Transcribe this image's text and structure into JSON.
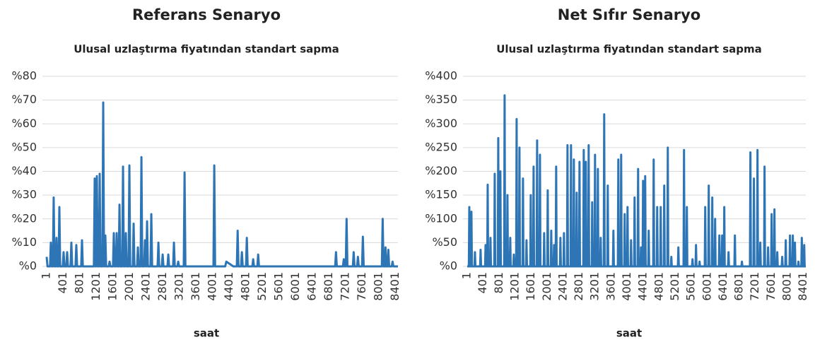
{
  "chart_data": [
    {
      "type": "line",
      "title": "Referans Senaryo",
      "subtitle": "Ulusal uzlaştırma fiyatından standart sapma",
      "x_label": "saat",
      "xlim": [
        1,
        8460
      ],
      "xticks": [
        1,
        401,
        801,
        1201,
        1601,
        2001,
        2401,
        2801,
        3201,
        3601,
        4001,
        4401,
        4801,
        5201,
        5601,
        6001,
        6401,
        6801,
        7201,
        7601,
        8001,
        8401
      ],
      "ylim": [
        0,
        80
      ],
      "yticks": [
        {
          "value": 0,
          "label": "%0"
        },
        {
          "value": 10,
          "label": "%10"
        },
        {
          "value": 20,
          "label": "%20"
        },
        {
          "value": 30,
          "label": "%30"
        },
        {
          "value": 40,
          "label": "%40"
        },
        {
          "value": 50,
          "label": "%50"
        },
        {
          "value": 60,
          "label": "%60"
        },
        {
          "value": 70,
          "label": "%70"
        },
        {
          "value": 80,
          "label": "%80"
        }
      ],
      "grid": true,
      "series": [
        {
          "color": "#2e75b6",
          "x": [
            1,
            21,
            82,
            102,
            122,
            150,
            170,
            190,
            218,
            238,
            258,
            287,
            307,
            327,
            389,
            409,
            429,
            474,
            494,
            514,
            576,
            596,
            616,
            695,
            715,
            735,
            832,
            852,
            872,
            1138,
            1158,
            1178,
            1190,
            1210,
            1230,
            1258,
            1278,
            1298,
            1343,
            1363,
            1383,
            1394,
            1414,
            1434,
            1496,
            1516,
            1536,
            1598,
            1618,
            1638,
            1667,
            1687,
            1707,
            1735,
            1755,
            1775,
            1820,
            1840,
            1860,
            1888,
            1908,
            1928,
            1973,
            1993,
            2013,
            2075,
            2095,
            2115,
            2178,
            2198,
            2218,
            2263,
            2283,
            2303,
            2348,
            2368,
            2388,
            2399,
            2419,
            2439,
            2501,
            2521,
            2541,
            2672,
            2692,
            2712,
            2774,
            2794,
            2814,
            2910,
            2930,
            2950,
            3046,
            3066,
            3086,
            3149,
            3169,
            3189,
            3302,
            3322,
            3342,
            4017,
            4037,
            4057,
            4300,
            4327,
            4497,
            4580,
            4600,
            4620,
            4682,
            4702,
            4722,
            4801,
            4821,
            4841,
            4954,
            4974,
            4994,
            5074,
            5094,
            5114,
            6948,
            6968,
            6988,
            7135,
            7155,
            7175,
            7203,
            7223,
            7243,
            7374,
            7394,
            7414,
            7476,
            7496,
            7516,
            7595,
            7615,
            7635,
            8072,
            8092,
            8112,
            8140,
            8160,
            8180,
            8208,
            8228,
            8248,
            8310,
            8330,
            8350,
            8460
          ],
          "values": [
            4,
            0,
            0,
            10,
            0,
            0,
            29,
            0,
            0,
            12,
            0,
            0,
            25,
            0,
            0,
            6,
            0,
            0,
            6,
            0,
            0,
            10,
            0,
            0,
            9,
            0,
            0,
            11,
            0,
            0,
            37,
            0,
            0,
            38,
            0,
            0,
            39,
            0,
            0,
            69,
            0,
            0,
            13,
            0,
            0,
            2,
            0,
            0,
            14,
            0,
            0,
            14,
            0,
            0,
            26,
            0,
            0,
            42,
            0,
            0,
            14,
            0,
            0,
            42.5,
            0,
            0,
            18,
            0,
            0,
            8,
            0,
            0,
            46,
            0,
            0,
            11,
            0,
            0,
            19,
            0,
            0,
            22,
            0,
            0,
            10,
            0,
            0,
            5,
            0,
            0,
            5,
            0,
            0,
            10,
            0,
            0,
            2,
            0,
            0,
            39.5,
            0,
            0,
            42.5,
            0,
            0,
            2,
            0,
            0,
            15,
            0,
            0,
            6,
            0,
            0,
            12,
            0,
            0,
            3,
            0,
            0,
            5,
            0,
            0,
            6,
            0,
            0,
            3,
            0,
            0,
            20,
            0,
            0,
            6,
            0,
            0,
            4,
            0,
            0,
            12.5,
            0,
            0,
            20,
            0,
            0,
            8,
            0,
            0,
            7,
            0,
            0,
            2,
            0,
            0
          ]
        }
      ]
    },
    {
      "type": "line",
      "title": "Net Sıfır Senaryo",
      "subtitle": "Ulusal uzlaştırma fiyatından standart sapma",
      "x_label": "saat",
      "xlim": [
        1,
        8460
      ],
      "xticks": [
        1,
        401,
        801,
        1201,
        1601,
        2001,
        2401,
        2801,
        3201,
        3601,
        4001,
        4401,
        4801,
        5201,
        5601,
        6001,
        6401,
        6801,
        7201,
        7601,
        8001,
        8401
      ],
      "ylim": [
        0,
        400
      ],
      "yticks": [
        {
          "value": 0,
          "label": "%0"
        },
        {
          "value": 50,
          "label": "%50"
        },
        {
          "value": 100,
          "label": "%100"
        },
        {
          "value": 150,
          "label": "%150"
        },
        {
          "value": 200,
          "label": "%200"
        },
        {
          "value": 250,
          "label": "%250"
        },
        {
          "value": 300,
          "label": "%300"
        },
        {
          "value": 350,
          "label": "%350"
        },
        {
          "value": 400,
          "label": "%400"
        }
      ],
      "grid": true,
      "series": [
        {
          "color": "#2e75b6",
          "x": [
            1,
            41,
            53,
            65,
            94,
            106,
            118,
            182,
            194,
            206,
            323,
            335,
            347,
            447,
            459,
            471,
            500,
            512,
            524,
            570,
            582,
            594,
            676,
            688,
            700,
            764,
            776,
            788,
            817,
            829,
            841,
            923,
            935,
            947,
            994,
            1006,
            1018,
            1064,
            1076,
            1088,
            1153,
            1165,
            1177,
            1223,
            1235,
            1247,
            1294,
            1306,
            1318,
            1382,
            1394,
            1406,
            1470,
            1482,
            1494,
            1576,
            1588,
            1600,
            1647,
            1659,
            1671,
            1735,
            1747,
            1759,
            1806,
            1818,
            1830,
            1911,
            1923,
            1935,
            2000,
            2012,
            2024,
            2088,
            2100,
            2112,
            2158,
            2170,
            2182,
            2211,
            2223,
            2235,
            2317,
            2329,
            2341,
            2406,
            2418,
            2430,
            2494,
            2506,
            2518,
            2582,
            2594,
            2606,
            2653,
            2665,
            2677,
            2723,
            2735,
            2747,
            2794,
            2806,
            2818,
            2900,
            2912,
            2924,
            2953,
            2965,
            2977,
            3023,
            3035,
            3047,
            3111,
            3123,
            3135,
            3182,
            3194,
            3206,
            3253,
            3265,
            3277,
            3323,
            3335,
            3347,
            3411,
            3423,
            3435,
            3500,
            3512,
            3524,
            3641,
            3653,
            3665,
            3764,
            3776,
            3788,
            3835,
            3847,
            3859,
            3923,
            3935,
            3947,
            3994,
            4006,
            4018,
            4082,
            4094,
            4106,
            4170,
            4182,
            4194,
            4258,
            4270,
            4282,
            4329,
            4341,
            4353,
            4382,
            4394,
            4406,
            4435,
            4447,
            4459,
            4523,
            4535,
            4547,
            4647,
            4659,
            4671,
            4735,
            4747,
            4759,
            4823,
            4835,
            4847,
            4911,
            4923,
            4935,
            5000,
            5012,
            5024,
            5088,
            5100,
            5112,
            5264,
            5276,
            5288,
            5405,
            5417,
            5429,
            5476,
            5488,
            5500,
            5617,
            5629,
            5641,
            5705,
            5717,
            5729,
            5794,
            5806,
            5818,
            5935,
            5947,
            5959,
            6023,
            6035,
            6047,
            6111,
            6123,
            6135,
            6182,
            6194,
            6206,
            6288,
            6300,
            6312,
            6358,
            6370,
            6382,
            6411,
            6423,
            6435,
            6517,
            6529,
            6541,
            6676,
            6688,
            6700,
            6852,
            6864,
            6876,
            7064,
            7076,
            7088,
            7152,
            7164,
            7176,
            7241,
            7253,
            7265,
            7311,
            7323,
            7335,
            7417,
            7429,
            7441,
            7505,
            7517,
            7529,
            7594,
            7606,
            7618,
            7664,
            7676,
            7688,
            7735,
            7747,
            7759,
            7858,
            7870,
            7882,
            7947,
            7959,
            7971,
            8052,
            8064,
            8076,
            8123,
            8135,
            8147,
            8176,
            8188,
            8200,
            8264,
            8276,
            8288,
            8348,
            8360,
            8372,
            8408,
            8420,
            8432,
            8460
          ],
          "values": [
            0,
            0,
            125,
            0,
            0,
            115,
            0,
            0,
            30,
            0,
            0,
            35,
            0,
            0,
            45,
            0,
            0,
            172,
            0,
            0,
            60,
            0,
            0,
            195,
            0,
            0,
            270,
            0,
            0,
            200,
            0,
            0,
            360,
            0,
            0,
            150,
            0,
            0,
            60,
            0,
            0,
            25,
            0,
            0,
            310,
            0,
            0,
            250,
            0,
            0,
            185,
            0,
            0,
            55,
            0,
            0,
            150,
            0,
            0,
            210,
            0,
            0,
            265,
            0,
            0,
            235,
            0,
            0,
            70,
            0,
            0,
            160,
            0,
            0,
            75,
            0,
            0,
            45,
            0,
            0,
            210,
            0,
            0,
            60,
            0,
            0,
            70,
            0,
            0,
            255,
            0,
            0,
            255,
            0,
            0,
            225,
            0,
            0,
            155,
            0,
            0,
            220,
            0,
            0,
            245,
            0,
            0,
            220,
            0,
            0,
            255,
            0,
            0,
            135,
            0,
            0,
            235,
            0,
            0,
            205,
            0,
            0,
            60,
            0,
            0,
            320,
            0,
            0,
            170,
            0,
            0,
            75,
            0,
            0,
            225,
            0,
            0,
            235,
            0,
            0,
            110,
            0,
            0,
            125,
            0,
            0,
            55,
            0,
            0,
            145,
            0,
            0,
            205,
            0,
            0,
            40,
            0,
            0,
            180,
            0,
            0,
            190,
            0,
            0,
            75,
            0,
            0,
            225,
            0,
            0,
            125,
            0,
            0,
            125,
            0,
            0,
            170,
            0,
            0,
            250,
            0,
            0,
            20,
            0,
            0,
            40,
            0,
            0,
            245,
            0,
            0,
            125,
            0,
            0,
            15,
            0,
            0,
            45,
            0,
            0,
            10,
            0,
            0,
            125,
            0,
            0,
            170,
            0,
            0,
            145,
            0,
            0,
            100,
            0,
            0,
            65,
            0,
            0,
            65,
            0,
            0,
            125,
            0,
            0,
            30,
            0,
            0,
            65,
            0,
            0,
            10,
            0,
            0,
            240,
            0,
            0,
            185,
            0,
            0,
            245,
            0,
            0,
            50,
            0,
            0,
            210,
            0,
            0,
            40,
            0,
            0,
            110,
            0,
            0,
            120,
            0,
            0,
            30,
            0,
            0,
            20,
            0,
            0,
            55,
            0,
            0,
            65,
            0,
            0,
            65,
            0,
            0,
            50,
            0,
            0,
            10,
            0,
            0,
            60,
            0,
            0,
            45,
            0,
            0
          ]
        }
      ]
    }
  ]
}
